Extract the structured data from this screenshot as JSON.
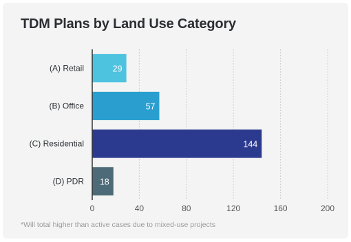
{
  "chart_data": {
    "type": "bar",
    "orientation": "horizontal",
    "title": "TDM Plans by Land Use Category",
    "categories": [
      "(A) Retail",
      "(B) Office",
      "(C) Residential",
      "(D) PDR"
    ],
    "values": [
      29,
      57,
      144,
      18
    ],
    "colors": [
      "#4ec3e0",
      "#2a9fcf",
      "#2b3a8f",
      "#4d6a78"
    ],
    "xlim": [
      0,
      200
    ],
    "xticks": [
      0,
      40,
      80,
      120,
      160,
      200
    ],
    "grid": true,
    "xlabel": "",
    "ylabel": "",
    "footnote": "*Will total higher than active cases due to mixed-use projects"
  }
}
